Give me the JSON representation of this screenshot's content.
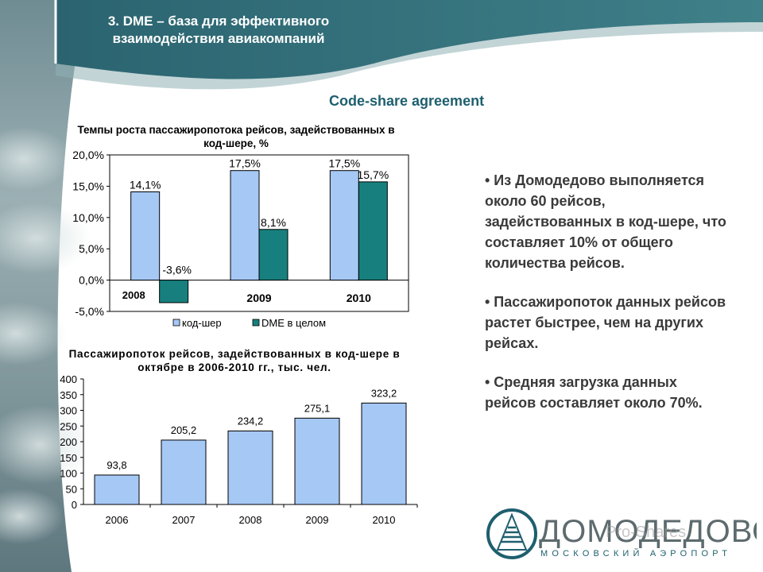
{
  "header": {
    "title": "3. DME – база для эффективного взаимодействия авиакомпаний"
  },
  "subtitle": "Code-share agreement",
  "charts": [
    {
      "title": "Темпы роста пассажиропотока рейсов, задействованных в код-шере, %"
    },
    {
      "title": "Пассажиропоток рейсов, задействованных в код-шере в октябре в 2006-2010 гг., тыс. чел."
    }
  ],
  "chart_data": [
    {
      "type": "bar",
      "title": "Темпы роста пассажиропотока рейсов, задействованных в код-шере, %",
      "categories": [
        "2008",
        "2009",
        "2010"
      ],
      "series": [
        {
          "name": "код-шер",
          "values": [
            14.1,
            17.5,
            17.5
          ],
          "labels": [
            "14,1%",
            "17,5%",
            "17,5%"
          ],
          "color": "#a6c8f5"
        },
        {
          "name": "DME  в целом",
          "values": [
            -3.6,
            8.1,
            15.7
          ],
          "labels": [
            "-3,6%",
            "8,1%",
            "15,7%"
          ],
          "color": "#17807e"
        }
      ],
      "ylim": [
        -5,
        20
      ],
      "yticks": [
        20,
        15,
        10,
        5,
        0,
        -5
      ],
      "ytick_labels": [
        "20,0%",
        "15,0%",
        "10,0%",
        "5,0%",
        "0,0%",
        "-5,0%"
      ],
      "legend": "bottom",
      "grid": false
    },
    {
      "type": "bar",
      "title": "Пассажиропоток рейсов, задействованных в код-шере в октябре в 2006-2010 гг., тыс. чел.",
      "categories": [
        "2006",
        "2007",
        "2008",
        "2009",
        "2010"
      ],
      "values": [
        93.8,
        205.2,
        234.2,
        275.1,
        323.2
      ],
      "labels": [
        "93,8",
        "205,2",
        "234,2",
        "275,1",
        "323,2"
      ],
      "color": "#a6c8f5",
      "ylim": [
        0,
        400
      ],
      "yticks": [
        400,
        350,
        300,
        250,
        200,
        150,
        100,
        50,
        0
      ],
      "legend": "none",
      "grid": false
    }
  ],
  "bullets": [
    "• Из Домодедово выполняется около 60 рейсов, задействованных в код-шере, что составляет 10% от общего количества рейсов.",
    "• Пассажиропоток данных рейсов растет быстрее, чем на других рейсах.",
    "• Средняя загрузка данных рейсов составляет около 70%."
  ],
  "logo": {
    "name": "ДОМОДЕДОВО",
    "tagline": "МОСКОВСКИЙ АЭРОПОРТ",
    "watermark": "Pro-Shares"
  },
  "colors": {
    "teal": "#17807e",
    "light_blue": "#a6c8f5",
    "header": "#2e6c78",
    "subtitle": "#1e5f6e"
  }
}
